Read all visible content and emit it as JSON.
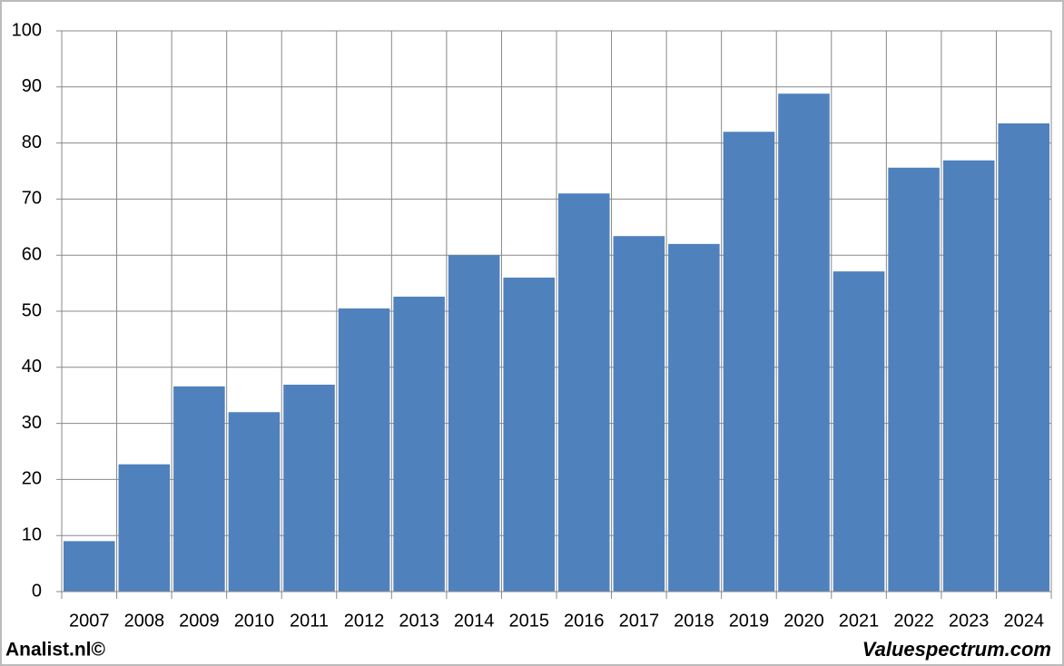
{
  "chart_data": {
    "type": "bar",
    "categories": [
      "2007",
      "2008",
      "2009",
      "2010",
      "2011",
      "2012",
      "2013",
      "2014",
      "2015",
      "2016",
      "2017",
      "2018",
      "2019",
      "2020",
      "2021",
      "2022",
      "2023",
      "2024"
    ],
    "values": [
      9,
      22.7,
      36.6,
      32.0,
      36.9,
      50.5,
      52.6,
      60.0,
      56.0,
      71.0,
      63.4,
      62.0,
      82.0,
      88.8,
      57.1,
      75.6,
      76.9,
      83.5
    ],
    "color": "#4f81bd",
    "ylim": [
      0,
      100
    ],
    "yticks": [
      0,
      10,
      20,
      30,
      40,
      50,
      60,
      70,
      80,
      90,
      100
    ],
    "grid": true
  },
  "footer": {
    "left": "Analist.nl©",
    "right": "Valuespectrum.com"
  }
}
